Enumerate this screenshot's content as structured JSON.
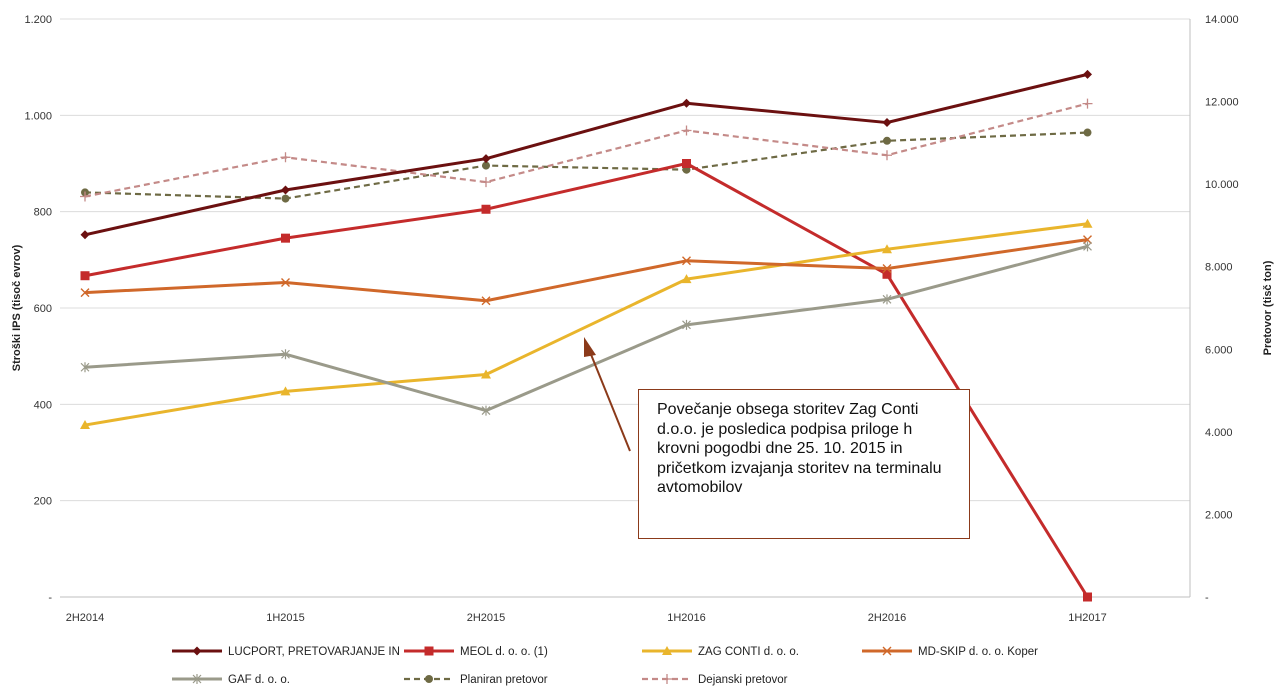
{
  "chart_data": {
    "type": "line",
    "title": "",
    "categories": [
      "2H2014",
      "1H2015",
      "2H2015",
      "1H2016",
      "2H2016",
      "1H2017"
    ],
    "y_left": {
      "label": "Stroški IPS (tisoč evrov)",
      "range": [
        0,
        1200
      ],
      "ticks": [
        {
          "value": 0,
          "label": "-"
        },
        {
          "value": 200,
          "label": "200"
        },
        {
          "value": 400,
          "label": "400"
        },
        {
          "value": 600,
          "label": "600"
        },
        {
          "value": 800,
          "label": "800"
        },
        {
          "value": 1000,
          "label": "1.000"
        },
        {
          "value": 1200,
          "label": "1.200"
        }
      ]
    },
    "y_right": {
      "label": "Pretovor (tisč ton)",
      "range": [
        0,
        14000
      ],
      "ticks": [
        {
          "value": 0,
          "label": "-"
        },
        {
          "value": 2000,
          "label": "2.000"
        },
        {
          "value": 4000,
          "label": "4.000"
        },
        {
          "value": 6000,
          "label": "6.000"
        },
        {
          "value": 8000,
          "label": "8.000"
        },
        {
          "value": 10000,
          "label": "10.000"
        },
        {
          "value": 12000,
          "label": "12.000"
        },
        {
          "value": 14000,
          "label": "14.000"
        }
      ]
    },
    "grid": true,
    "legend_position": "bottom",
    "series": [
      {
        "name": "LUCPORT, PRETOVARJANJE IN",
        "axis": "left",
        "color": "#6B1010",
        "marker": "diamond",
        "dash": "solid",
        "values": [
          752,
          845,
          910,
          1025,
          985,
          1085
        ]
      },
      {
        "name": "MEOL d. o. o. (1)",
        "axis": "left",
        "color": "#C42B2B",
        "marker": "square",
        "dash": "solid",
        "values": [
          667,
          745,
          805,
          900,
          670,
          0
        ]
      },
      {
        "name": "ZAG CONTI d. o. o.",
        "axis": "left",
        "color": "#E9B52C",
        "marker": "triangle",
        "dash": "solid",
        "values": [
          357,
          427,
          462,
          660,
          722,
          775
        ]
      },
      {
        "name": "MD-SKIP d. o. o. Koper",
        "axis": "left",
        "color": "#D0682A",
        "marker": "x",
        "dash": "solid",
        "values": [
          632,
          653,
          615,
          698,
          682,
          742
        ]
      },
      {
        "name": "GAF d. o. o.",
        "axis": "left",
        "color": "#9A9A8A",
        "marker": "star",
        "dash": "solid",
        "values": [
          477,
          504,
          387,
          565,
          618,
          728
        ]
      },
      {
        "name": "Planiran pretovor",
        "axis": "right",
        "color": "#6E6A44",
        "marker": "circle",
        "dash": "dashed",
        "values": [
          9800,
          9650,
          10450,
          10350,
          11050,
          11250
        ]
      },
      {
        "name": "Dejanski pretovor",
        "axis": "right",
        "color": "#C48A88",
        "marker": "plus",
        "dash": "dashed",
        "values": [
          9700,
          10650,
          10050,
          11300,
          10700,
          11950
        ]
      }
    ],
    "annotation": {
      "text": "Povečanje obsega storitev Zag Conti d.o.o. je posledica podpisa priloge h krovni pogodbi dne 25. 10. 2015 in pričetkom izvajanja storitev na terminalu avtomobilov",
      "color": "#8B3A1A"
    }
  }
}
